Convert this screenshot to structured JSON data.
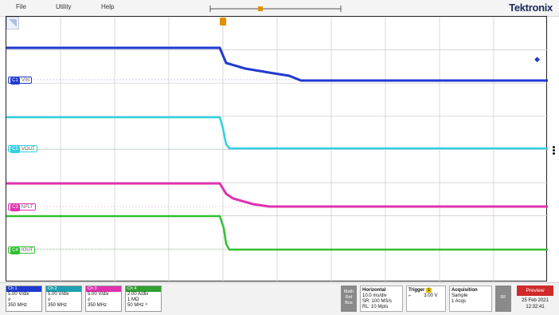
{
  "menu": {
    "file": "File",
    "utility": "Utility",
    "help": "Help"
  },
  "brand": "Tektronix",
  "channels": [
    {
      "id": "C1",
      "name": "VIN",
      "color": "#1f3ad0",
      "scale": "5.00 V/div",
      "coupling": "ⅇ",
      "bw": "350 MHz",
      "extra": ""
    },
    {
      "id": "C2",
      "name": "VOUT",
      "color": "#2fd0e0",
      "scale": "5.00 V/div",
      "coupling": "ⅇ",
      "bw": "350 MHz",
      "extra": ""
    },
    {
      "id": "C3",
      "name": "NFLT",
      "color": "#e030b0",
      "scale": "5.00 V/div",
      "coupling": "ⅇ",
      "bw": "350 MHz",
      "extra": ""
    },
    {
      "id": "C4",
      "name": "IOUT",
      "color": "#30c030",
      "scale": "2.00 A/div",
      "coupling": "1 MΩ",
      "bw": "50 MHz ᴬ",
      "extra": ""
    }
  ],
  "channel_headers": [
    "Ch 1",
    "Ch 2",
    "Ch 3",
    "Ch 4"
  ],
  "side_button": {
    "line1": "Math",
    "line2": "Ref",
    "line3": "Bus"
  },
  "horizontal": {
    "title": "Horizontal",
    "scale": "10.0 ms/div",
    "sr": "SR: 100 MS/s",
    "rl": "RL: 10 Mpts"
  },
  "trigger": {
    "title": "Trigger",
    "badge": "1",
    "level": "3.00 V"
  },
  "acquisition": {
    "title": "Acquisition",
    "mode": "Sample",
    "acqs": "1 Acqs"
  },
  "rf_button": "RF",
  "preview_button": "Preview",
  "date": "25 Feb 2021",
  "time": "12:32:41"
}
